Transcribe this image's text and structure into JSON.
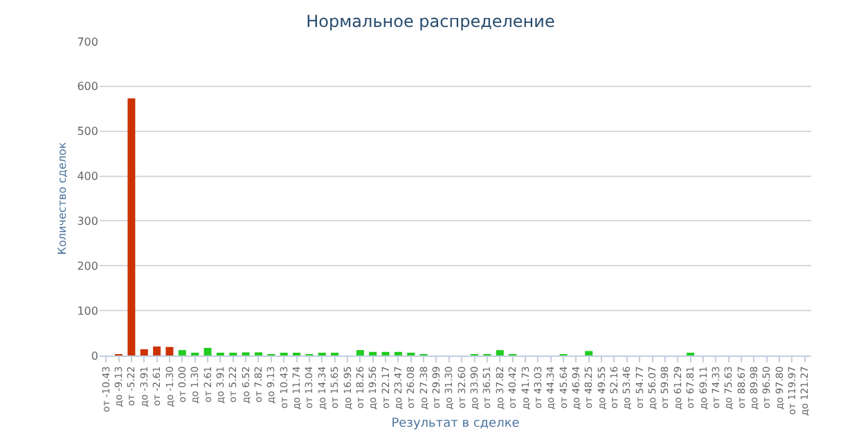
{
  "chart_data": {
    "type": "bar",
    "title": "Нормальное распределение",
    "xlabel": "Результат в сделке",
    "ylabel": "Количество сделок",
    "categories": [
      "от -10.43",
      "до -9.13",
      "от -5.22",
      "до -3.91",
      "от -2.61",
      "до -1.30",
      "от 0.00",
      "до 1.30",
      "от 2.61",
      "до 3.91",
      "от 5.22",
      "до 6.52",
      "от 7.82",
      "до 9.13",
      "от 10.43",
      "до 11.74",
      "от 13.04",
      "до 14.34",
      "от 15.65",
      "до 16.95",
      "от 18.26",
      "до 19.56",
      "от 22.17",
      "до 23.47",
      "от 26.08",
      "до 27.38",
      "от 29.99",
      "до 31.30",
      "от 32.60",
      "до 33.90",
      "от 36.51",
      "до 37.82",
      "от 40.42",
      "до 41.73",
      "от 43.03",
      "до 44.34",
      "от 45.64",
      "до 46.94",
      "от 48.25",
      "до 49.55",
      "от 52.16",
      "до 53.46",
      "от 54.77",
      "до 56.07",
      "от 59.98",
      "до 61.29",
      "от 67.81",
      "до 69.11",
      "от 74.33",
      "до 75.63",
      "от 88.67",
      "до 89.98",
      "от 96.50",
      "до 97.80",
      "от 119.97",
      "до 121.27"
    ],
    "values": [
      0,
      3,
      573,
      14,
      20,
      19,
      12,
      4,
      17,
      6,
      4,
      7,
      7,
      2,
      5,
      5,
      2,
      6,
      4,
      0,
      12,
      8,
      8,
      8,
      4,
      3,
      0,
      0,
      0,
      3,
      3,
      12,
      3,
      0,
      0,
      0,
      3,
      0,
      10,
      0,
      0,
      0,
      0,
      0,
      0,
      0,
      5,
      0,
      0,
      0,
      0,
      0,
      0,
      0,
      0,
      0
    ],
    "colors": [
      "#cc3300",
      "#cc3300",
      "#cc3300",
      "#cc3300",
      "#cc3300",
      "#cc3300",
      "#22cc22",
      "#22cc22",
      "#22cc22",
      "#22cc22",
      "#22cc22",
      "#22cc22",
      "#22cc22",
      "#22cc22",
      "#22cc22",
      "#22cc22",
      "#22cc22",
      "#22cc22",
      "#22cc22",
      "#22cc22",
      "#22cc22",
      "#22cc22",
      "#22cc22",
      "#22cc22",
      "#22cc22",
      "#22cc22",
      "#22cc22",
      "#22cc22",
      "#22cc22",
      "#22cc22",
      "#22cc22",
      "#22cc22",
      "#22cc22",
      "#22cc22",
      "#22cc22",
      "#22cc22",
      "#22cc22",
      "#22cc22",
      "#22cc22",
      "#22cc22",
      "#22cc22",
      "#22cc22",
      "#22cc22",
      "#22cc22",
      "#22cc22",
      "#22cc22",
      "#22cc22",
      "#22cc22",
      "#22cc22",
      "#22cc22",
      "#22cc22",
      "#22cc22",
      "#22cc22",
      "#22cc22",
      "#22cc22",
      "#22cc22"
    ],
    "ylim": [
      0,
      700
    ],
    "yticks": [
      0,
      100,
      200,
      300,
      400,
      500,
      600,
      700
    ],
    "grid": "y"
  }
}
